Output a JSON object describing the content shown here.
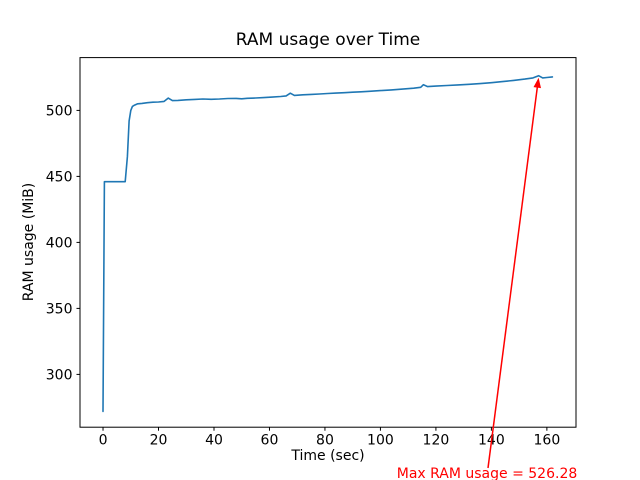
{
  "figure": {
    "background": "#ffffff",
    "text_color": "#000000"
  },
  "chart_data": {
    "type": "line",
    "title": "RAM usage over Time",
    "xlabel": "Time (sec)",
    "ylabel": "RAM usage (MiB)",
    "xlim": [
      -8.3,
      170.5
    ],
    "ylim": [
      260,
      540
    ],
    "xticks": [
      0,
      20,
      40,
      60,
      80,
      100,
      120,
      140,
      160
    ],
    "yticks": [
      300,
      350,
      400,
      450,
      500
    ],
    "grid": false,
    "legend_position": "none",
    "series": [
      {
        "name": "RAM usage",
        "color": "#1f77b4",
        "x": [
          0,
          0.5,
          8,
          8.8,
          9.4,
          10,
          10.6,
          11.4,
          12.5,
          14,
          16,
          18,
          20,
          22,
          23.5,
          25,
          27,
          30,
          33,
          36,
          39,
          42,
          45,
          48,
          50,
          52,
          55,
          58,
          61,
          64,
          66,
          67.5,
          69,
          72,
          75,
          78,
          81,
          84,
          87,
          90,
          93,
          96,
          100,
          104,
          108,
          112,
          114.5,
          115.5,
          117,
          120,
          124,
          128,
          132,
          136,
          140,
          144,
          148,
          152,
          155,
          157,
          158.5,
          160,
          162
        ],
        "y": [
          272,
          446,
          446,
          465,
          492,
          500,
          503,
          504,
          505,
          505.3,
          505.8,
          506.2,
          506.4,
          506.8,
          509.3,
          507.4,
          507.6,
          508,
          508.3,
          508.6,
          508.4,
          508.6,
          509,
          509.1,
          508.8,
          509.2,
          509.4,
          509.7,
          510.1,
          510.5,
          511,
          513,
          511.4,
          511.8,
          512.1,
          512.4,
          512.8,
          513.1,
          513.4,
          513.8,
          514.1,
          514.5,
          515,
          515.5,
          516.1,
          516.8,
          517.5,
          519.5,
          518,
          518.4,
          518.9,
          519.3,
          519.8,
          520.3,
          521,
          521.8,
          522.7,
          523.7,
          524.6,
          526.28,
          524.6,
          524.9,
          525.4
        ]
      }
    ],
    "annotation": {
      "label": "Max RAM usage = 526.28",
      "color": "#ff0000",
      "max_value": 526.28,
      "target": {
        "x": 157,
        "y": 526.28
      }
    }
  }
}
